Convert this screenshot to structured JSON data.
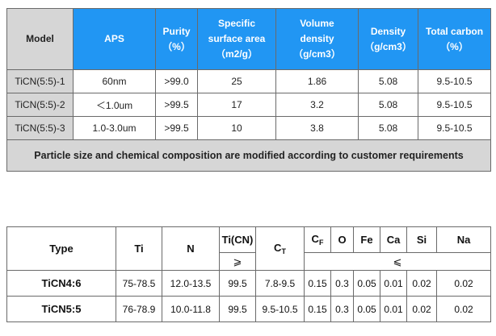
{
  "table1": {
    "headers": {
      "model": "Model",
      "aps": "APS",
      "purity": [
        "Purity",
        "（%）"
      ],
      "ssa": [
        "Specific",
        "surface area",
        "（m2/g）"
      ],
      "vd": [
        "Volume",
        "density",
        "（g/cm3）"
      ],
      "density": [
        "Density",
        "（g/cm3）"
      ],
      "carbon": [
        "Total carbon",
        "（%）"
      ]
    },
    "rows": [
      {
        "model": "TiCN(5:5)-1",
        "aps": "60nm",
        "purity": ">99.0",
        "ssa": "25",
        "vd": "1.86",
        "density": "5.08",
        "carbon": "9.5-10.5"
      },
      {
        "model": "TiCN(5:5)-2",
        "aps": "＜1.0um",
        "purity": ">99.5",
        "ssa": "17",
        "vd": "3.2",
        "density": "5.08",
        "carbon": "9.5-10.5"
      },
      {
        "model": "TiCN(5:5)-3",
        "aps": "1.0-3.0um",
        "purity": ">99.5",
        "ssa": "10",
        "vd": "3.8",
        "density": "5.08",
        "carbon": "9.5-10.5"
      }
    ],
    "footer": "Particle size and chemical composition are modified according to customer requirements"
  },
  "table2": {
    "headers": {
      "type": "Type",
      "ti": "Ti",
      "n": "N",
      "ticn": "Ti(CN)",
      "ct": "C",
      "ct_sub": "T",
      "cf": "C",
      "cf_sub": "F",
      "o": "O",
      "fe": "Fe",
      "ca": "Ca",
      "si": "Si",
      "na": "Na",
      "ge": "⩾",
      "le": "⩽"
    },
    "rows": [
      {
        "type": "TiCN4:6",
        "ti": "75-78.5",
        "n": "12.0-13.5",
        "ticn": "99.5",
        "ct": "7.8-9.5",
        "cf": "0.15",
        "o": "0.3",
        "fe": "0.05",
        "ca": "0.01",
        "si": "0.02",
        "na": "0.02"
      },
      {
        "type": "TiCN5:5",
        "ti": "76-78.9",
        "n": "10.0-11.8",
        "ticn": "99.5",
        "ct": "9.5-10.5",
        "cf": "0.15",
        "o": "0.3",
        "fe": "0.05",
        "ca": "0.01",
        "si": "0.02",
        "na": "0.02"
      }
    ]
  }
}
